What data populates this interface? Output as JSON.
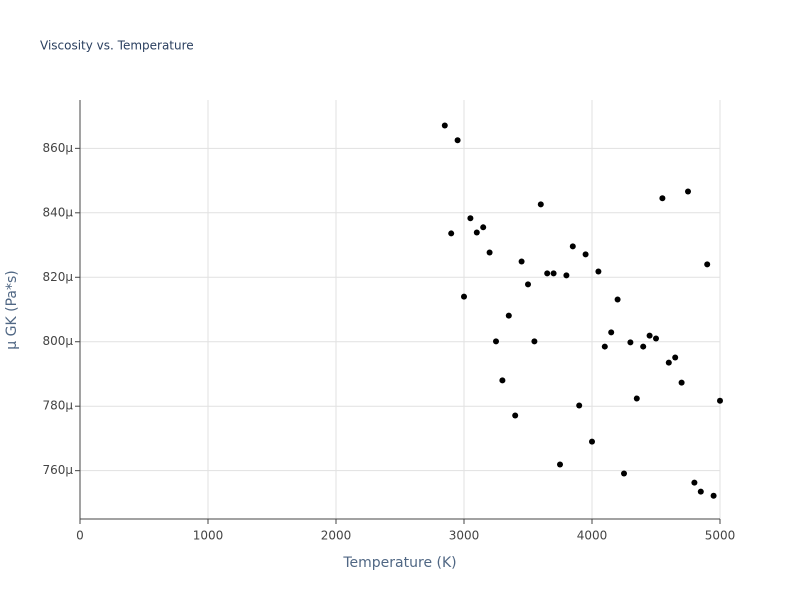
{
  "chart_data": {
    "type": "scatter",
    "title": "Viscosity vs. Temperature",
    "x_label": "Temperature (K)",
    "y_label": "μ GK (Pa*s)",
    "color": "#000000",
    "grid": true,
    "xlim": [
      0,
      5000
    ],
    "xticks": [
      0,
      1000,
      2000,
      3000,
      4000,
      5000
    ],
    "ylim": [
      0.000745,
      0.000875
    ],
    "yticks": [
      {
        "value": 0.00076,
        "label": "760μ"
      },
      {
        "value": 0.00078,
        "label": "780μ"
      },
      {
        "value": 0.0008,
        "label": "800μ"
      },
      {
        "value": 0.00082,
        "label": "820μ"
      },
      {
        "value": 0.00084,
        "label": "840μ"
      },
      {
        "value": 0.00086,
        "label": "860μ"
      }
    ],
    "x": [
      2850,
      2900,
      2950,
      3000,
      3050,
      3100,
      3150,
      3200,
      3250,
      3300,
      3350,
      3400,
      3450,
      3500,
      3550,
      3600,
      3650,
      3700,
      3750,
      3800,
      3850,
      3900,
      3950,
      4000,
      4050,
      4100,
      4150,
      4200,
      4250,
      4300,
      4350,
      4400,
      4450,
      4500,
      4550,
      4600,
      4650,
      4700,
      4750,
      4800,
      4850,
      4900,
      4950,
      5000
    ],
    "values": [
      0.0008671,
      0.0008336,
      0.0008625,
      0.000814,
      0.0008383,
      0.0008339,
      0.0008355,
      0.0008277,
      0.0008001,
      0.000788,
      0.0008081,
      0.0007771,
      0.0008249,
      0.0008178,
      0.0008001,
      0.0008426,
      0.0008212,
      0.0008212,
      0.0007619,
      0.0008206,
      0.0008296,
      0.0007802,
      0.0008271,
      0.000769,
      0.0008218,
      0.0007985,
      0.0008029,
      0.0008131,
      0.0007591,
      0.0007998,
      0.0007824,
      0.0007985,
      0.0008019,
      0.000801,
      0.0008445,
      0.0007935,
      0.0007951,
      0.0007873,
      0.0008466,
      0.0007563,
      0.0007535,
      0.000824,
      0.0007522,
      0.0007817
    ]
  }
}
